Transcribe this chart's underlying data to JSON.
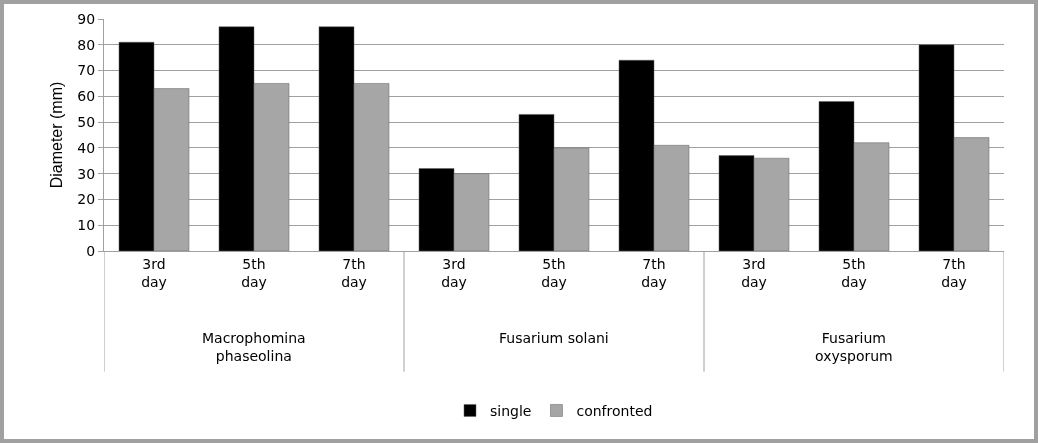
{
  "chart_data": {
    "type": "bar",
    "ylabel": "Diameter (mm)",
    "categories": [
      "3rd day",
      "5th day",
      "7th day",
      "3rd day",
      "5th day",
      "7th day",
      "3rd day",
      "5th day",
      "7th day"
    ],
    "series": [
      {
        "name": "single",
        "color": "#000000",
        "values": [
          81,
          87,
          87,
          32,
          53,
          74,
          37,
          58,
          80
        ]
      },
      {
        "name": "confronted",
        "color": "#a6a6a6",
        "values": [
          63,
          65,
          65,
          30,
          40,
          41,
          36,
          42,
          44
        ]
      }
    ],
    "annotations": [
      "Macrophomina phaseolina",
      "Fusarium solani",
      "Fusarium oxysporum"
    ],
    "ylim": [
      0,
      90
    ],
    "yticks": [
      0,
      10,
      20,
      30,
      40,
      50,
      60,
      70,
      80,
      90
    ],
    "grid": "y",
    "legend": "bottom"
  }
}
